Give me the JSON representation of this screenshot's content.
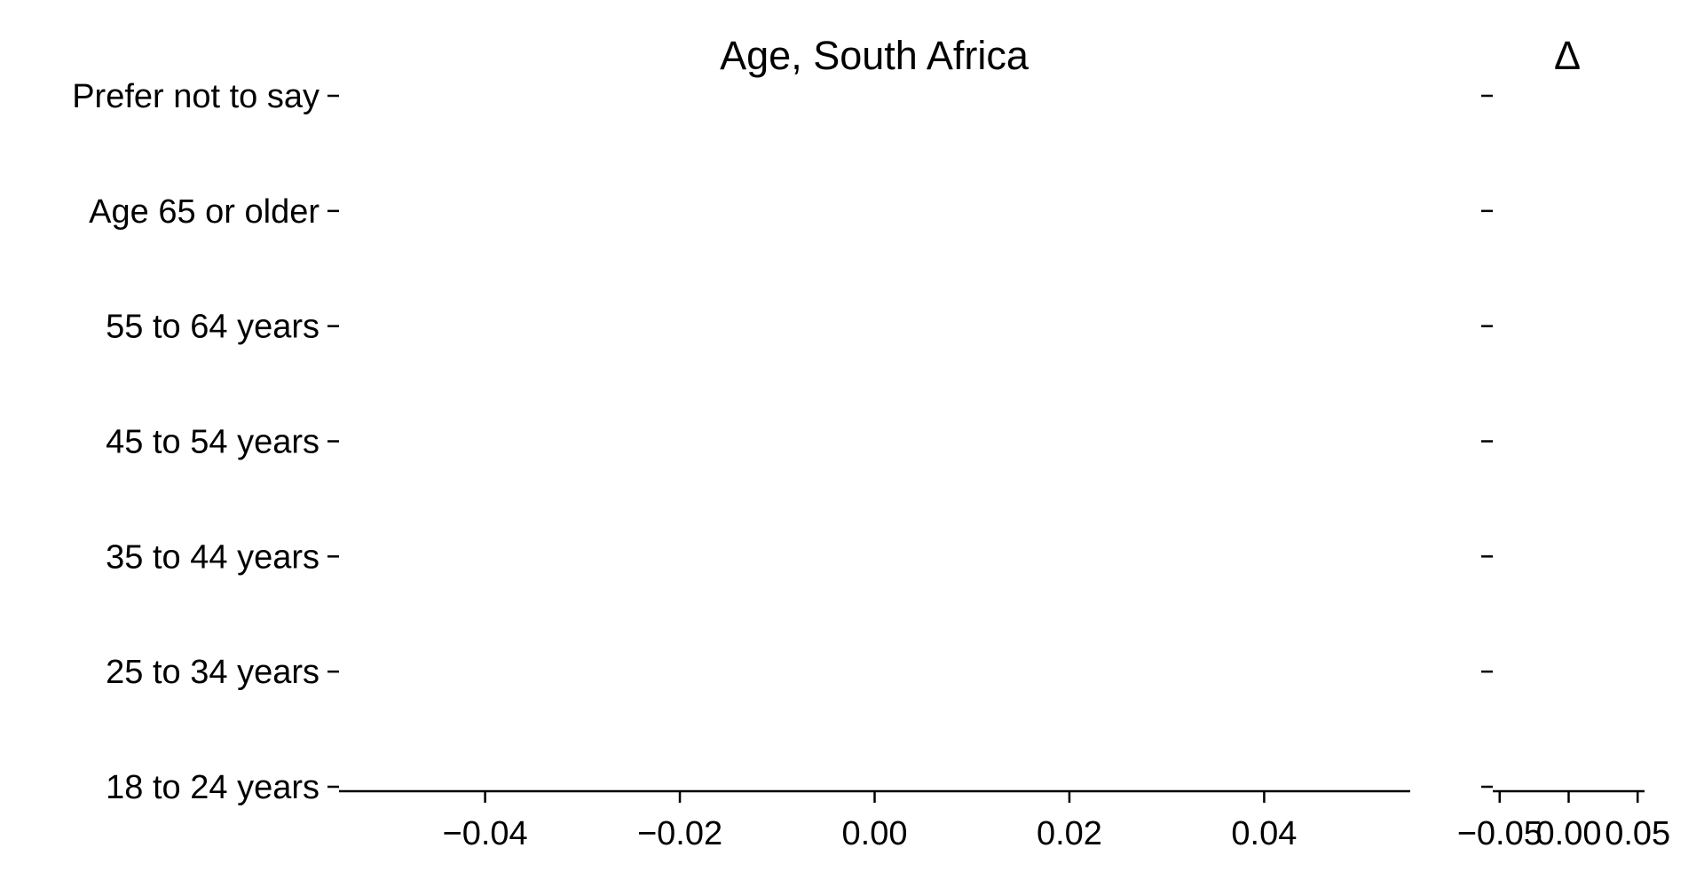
{
  "chart_data": [
    {
      "type": "bar",
      "title": "Age, South Africa",
      "categories": [
        "18 to 24 years",
        "25 to 34 years",
        "35 to 44 years",
        "45 to 54 years",
        "55 to 64 years",
        "Age 65 or older",
        "Prefer not to say"
      ],
      "series": [],
      "xlim": [
        -0.055,
        0.055
      ],
      "xticks": [
        "−0.04",
        "−0.02",
        "0.00",
        "0.02",
        "0.04"
      ],
      "xtick_values": [
        -0.04,
        -0.02,
        0.0,
        0.02,
        0.04
      ],
      "grid": false,
      "legend": "none"
    },
    {
      "type": "bar",
      "title": "Δ",
      "categories": [
        "18 to 24 years",
        "25 to 34 years",
        "35 to 44 years",
        "45 to 54 years",
        "55 to 64 years",
        "Age 65 or older",
        "Prefer not to say"
      ],
      "series": [],
      "xlim": [
        -0.055,
        0.055
      ],
      "xticks": [
        "−0.05",
        "0.00",
        "0.05"
      ],
      "xtick_values": [
        -0.05,
        0.0,
        0.05
      ],
      "grid": false,
      "legend": "none"
    }
  ],
  "colors": {
    "axis": "#000000",
    "background": "#ffffff"
  }
}
